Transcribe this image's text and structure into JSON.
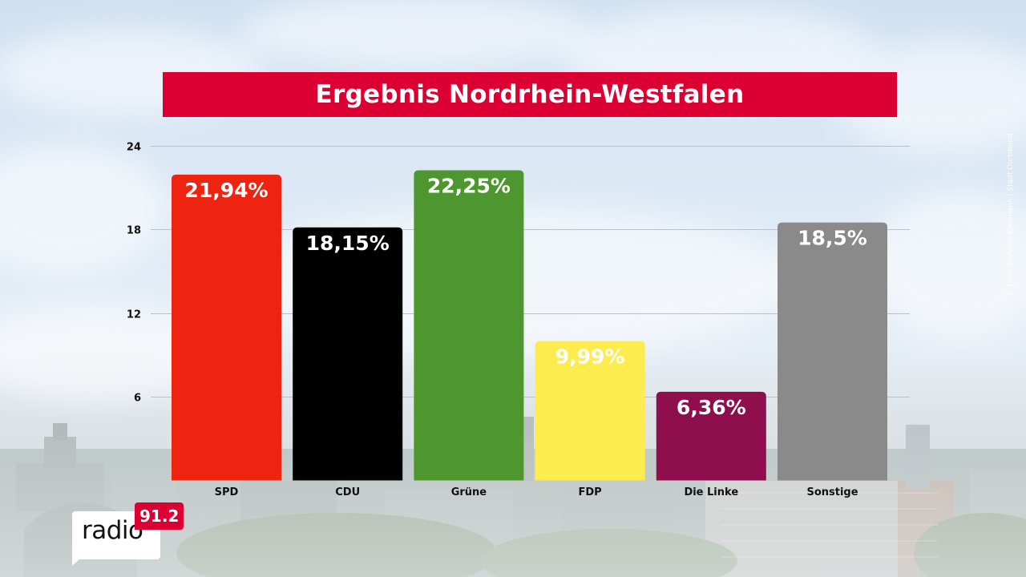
{
  "chart_data": {
    "type": "bar",
    "title": "Ergebnis Nordrhein-Westfalen",
    "categories": [
      "SPD",
      "CDU",
      "Grüne",
      "FDP",
      "Die Linke",
      "Sonstige"
    ],
    "values": [
      21.94,
      18.15,
      22.25,
      9.99,
      6.36,
      18.5
    ],
    "data_labels": [
      "21,94%",
      "18,15%",
      "22,25%",
      "9,99%",
      "6,36%",
      "18,5%"
    ],
    "colors": [
      "#ee2411",
      "#000000",
      "#4e962e",
      "#fdec4e",
      "#8f0e4e",
      "#8a8a8a"
    ],
    "yticks": [
      6,
      12,
      18,
      24
    ],
    "ytick_labels": [
      "6",
      "12",
      "18",
      "24"
    ],
    "ylim": [
      0,
      24
    ],
    "grid": true,
    "xlabel": "",
    "ylabel": ""
  },
  "photo_credit": "© Foto: Stefanie Kleemann | Stadt Dortmund",
  "logo": {
    "word": "radio",
    "frequency": "91.2"
  },
  "colors": {
    "title_banner": "#dc0032",
    "logo_accent": "#dc0032"
  }
}
